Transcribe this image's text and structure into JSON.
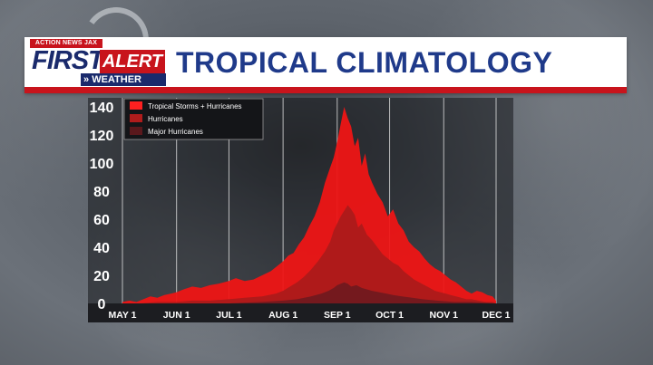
{
  "header": {
    "logo_top": "ACTION NEWS JAX",
    "logo_first": "FIRST",
    "logo_alert": "ALERT",
    "logo_weather": "WEATHER",
    "title": "TROPICAL CLIMATOLOGY"
  },
  "colors": {
    "tropical": "#ee1515",
    "hurricanes": "#a81b1b",
    "major": "#6e1a1f",
    "title": "#1f3a8a",
    "brand_red": "#c8141c"
  },
  "chart_data": {
    "type": "area",
    "xlabel": "",
    "ylabel": "",
    "ylim": [
      0,
      140
    ],
    "yticks": [
      "140",
      "120",
      "100",
      "80",
      "60",
      "40",
      "20",
      "0"
    ],
    "xtick_labels": [
      "MAY 1",
      "JUN 1",
      "JUL 1",
      "AUG 1",
      "SEP 1",
      "OCT 1",
      "NOV 1",
      "DEC 1"
    ],
    "xtick_days": [
      0,
      31,
      61,
      92,
      123,
      153,
      184,
      214
    ],
    "legend_position": "top-left",
    "series": [
      {
        "name": "Tropical Storms + Hurricanes",
        "x": [
          0,
          4,
          8,
          12,
          16,
          20,
          24,
          28,
          31,
          35,
          40,
          45,
          50,
          55,
          61,
          65,
          70,
          75,
          80,
          85,
          88,
          92,
          95,
          98,
          101,
          104,
          107,
          110,
          113,
          116,
          119,
          121,
          123,
          125,
          127,
          129,
          131,
          133,
          135,
          137,
          139,
          141,
          143,
          146,
          149,
          152,
          155,
          158,
          161,
          164,
          167,
          170,
          173,
          176,
          179,
          182,
          185,
          188,
          191,
          194,
          197,
          200,
          203,
          206,
          209,
          212,
          214
        ],
        "values": [
          1,
          2,
          1,
          3,
          5,
          4,
          6,
          7,
          8,
          10,
          12,
          11,
          13,
          14,
          16,
          18,
          16,
          17,
          20,
          23,
          26,
          30,
          34,
          36,
          42,
          47,
          55,
          62,
          72,
          86,
          97,
          104,
          115,
          128,
          140,
          132,
          126,
          112,
          118,
          98,
          107,
          92,
          86,
          78,
          72,
          62,
          67,
          57,
          52,
          44,
          40,
          37,
          32,
          28,
          25,
          23,
          20,
          17,
          15,
          12,
          9,
          7,
          9,
          8,
          6,
          5,
          2
        ]
      },
      {
        "name": "Hurricanes",
        "x": [
          0,
          10,
          20,
          31,
          40,
          50,
          61,
          70,
          80,
          88,
          92,
          96,
          100,
          104,
          108,
          112,
          116,
          119,
          121,
          123,
          125,
          127,
          129,
          131,
          133,
          135,
          137,
          140,
          143,
          146,
          149,
          152,
          155,
          158,
          161,
          164,
          167,
          170,
          173,
          176,
          179,
          182,
          185,
          188,
          191,
          194,
          197,
          200,
          204,
          208,
          212,
          214
        ],
        "values": [
          0,
          0,
          1,
          1,
          2,
          2,
          3,
          4,
          5,
          7,
          9,
          12,
          15,
          19,
          24,
          30,
          37,
          44,
          52,
          57,
          62,
          66,
          70,
          67,
          63,
          54,
          57,
          49,
          45,
          40,
          35,
          32,
          29,
          27,
          23,
          20,
          17,
          15,
          13,
          11,
          9,
          8,
          7,
          6,
          5,
          4,
          3,
          3,
          2,
          1,
          1,
          0
        ]
      },
      {
        "name": "Major Hurricanes",
        "x": [
          0,
          20,
          40,
          61,
          80,
          92,
          100,
          108,
          114,
          118,
          121,
          123,
          125,
          127,
          129,
          131,
          134,
          137,
          140,
          143,
          147,
          151,
          155,
          160,
          166,
          172,
          180,
          190,
          200,
          214
        ],
        "values": [
          0,
          0,
          0,
          0,
          1,
          2,
          3,
          5,
          7,
          9,
          11,
          13,
          14,
          15,
          14,
          12,
          13,
          11,
          10,
          9,
          8,
          7,
          6,
          5,
          4,
          3,
          2,
          1,
          1,
          0
        ]
      }
    ]
  }
}
